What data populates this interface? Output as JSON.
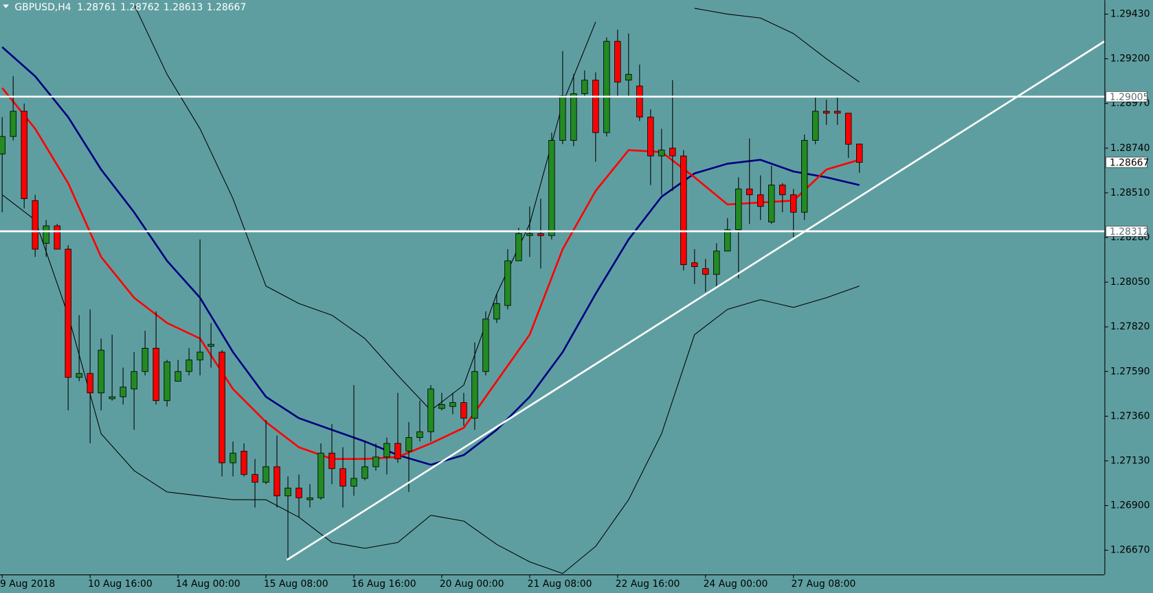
{
  "chart_data": {
    "type": "candlestick",
    "symbol": "GBPUSD,H4",
    "background": "#5f9ea0",
    "up_color": "#228b22",
    "down_color": "#ff0000",
    "candles": [
      [
        1.2871,
        1.289,
        1.2841,
        1.288
      ],
      [
        1.288,
        1.2911,
        1.2878,
        1.2893
      ],
      [
        1.2893,
        1.2897,
        1.2843,
        1.2848
      ],
      [
        1.2847,
        1.285,
        1.2818,
        1.2822
      ],
      [
        1.2825,
        1.2837,
        1.2818,
        1.2834
      ],
      [
        1.2834,
        1.2835,
        1.2822,
        1.2822
      ],
      [
        1.2822,
        1.2824,
        1.2739,
        1.2756
      ],
      [
        1.2756,
        1.2788,
        1.2754,
        1.2758
      ],
      [
        1.2758,
        1.2791,
        1.2722,
        1.2748
      ],
      [
        1.2748,
        1.2776,
        1.2739,
        1.277
      ],
      [
        1.2745,
        1.2778,
        1.2744,
        1.2746
      ],
      [
        1.2746,
        1.2761,
        1.2742,
        1.2751
      ],
      [
        1.275,
        1.2769,
        1.2729,
        1.2759
      ],
      [
        1.2759,
        1.278,
        1.2757,
        1.2771
      ],
      [
        1.2771,
        1.279,
        1.2742,
        1.2744
      ],
      [
        1.2744,
        1.2765,
        1.2741,
        1.2764
      ],
      [
        1.2754,
        1.2765,
        1.2754,
        1.2759
      ],
      [
        1.2759,
        1.2771,
        1.2757,
        1.2765
      ],
      [
        1.2765,
        1.2827,
        1.2757,
        1.2769
      ],
      [
        1.2772,
        1.2784,
        1.2761,
        1.2773
      ],
      [
        1.2769,
        1.277,
        1.2705,
        1.2712
      ],
      [
        1.2712,
        1.2723,
        1.2705,
        1.2717
      ],
      [
        1.2718,
        1.2722,
        1.2705,
        1.2706
      ],
      [
        1.2706,
        1.2714,
        1.2689,
        1.2702
      ],
      [
        1.2702,
        1.2734,
        1.2701,
        1.271
      ],
      [
        1.271,
        1.2726,
        1.2689,
        1.2695
      ],
      [
        1.2695,
        1.2705,
        1.2663,
        1.2699
      ],
      [
        1.2699,
        1.2706,
        1.2684,
        1.2694
      ],
      [
        1.2693,
        1.2701,
        1.2689,
        1.2694
      ],
      [
        1.2694,
        1.2722,
        1.2693,
        1.2717
      ],
      [
        1.2717,
        1.2732,
        1.2701,
        1.2709
      ],
      [
        1.2709,
        1.272,
        1.2689,
        1.27
      ],
      [
        1.27,
        1.2752,
        1.2695,
        1.2704
      ],
      [
        1.2704,
        1.2723,
        1.2703,
        1.271
      ],
      [
        1.271,
        1.2722,
        1.2708,
        1.2715
      ],
      [
        1.2715,
        1.2725,
        1.2706,
        1.2722
      ],
      [
        1.2722,
        1.2748,
        1.2712,
        1.2714
      ],
      [
        1.2718,
        1.2733,
        1.2697,
        1.2725
      ],
      [
        1.2725,
        1.2744,
        1.2723,
        1.2728
      ],
      [
        1.2728,
        1.2752,
        1.2723,
        1.275
      ],
      [
        1.274,
        1.2748,
        1.2739,
        1.2742
      ],
      [
        1.2741,
        1.2748,
        1.2737,
        1.2743
      ],
      [
        1.2743,
        1.2748,
        1.2731,
        1.2735
      ],
      [
        1.2735,
        1.2774,
        1.2729,
        1.2759
      ],
      [
        1.2759,
        1.279,
        1.2757,
        1.2786
      ],
      [
        1.2786,
        1.2799,
        1.2784,
        1.2794
      ],
      [
        1.2793,
        1.2822,
        1.2791,
        1.2816
      ],
      [
        1.2816,
        1.2833,
        1.2816,
        1.283
      ],
      [
        1.2829,
        1.2844,
        1.2818,
        1.283
      ],
      [
        1.283,
        1.2848,
        1.2812,
        1.2829
      ],
      [
        1.2829,
        1.2882,
        1.2827,
        1.2878
      ],
      [
        1.2878,
        1.2924,
        1.2876,
        1.2901
      ],
      [
        1.2878,
        1.2912,
        1.2875,
        1.2902
      ],
      [
        1.2902,
        1.2914,
        1.2901,
        1.2909
      ],
      [
        1.2909,
        1.2913,
        1.2867,
        1.2882
      ],
      [
        1.2882,
        1.2931,
        1.288,
        1.2929
      ],
      [
        1.2929,
        1.2935,
        1.2901,
        1.2908
      ],
      [
        1.2909,
        1.2933,
        1.2901,
        1.2912
      ],
      [
        1.2906,
        1.2917,
        1.2888,
        1.289
      ],
      [
        1.289,
        1.2894,
        1.2855,
        1.287
      ],
      [
        1.287,
        1.2884,
        1.285,
        1.2873
      ],
      [
        1.2874,
        1.2909,
        1.2852,
        1.287
      ],
      [
        1.287,
        1.2873,
        1.2811,
        1.2814
      ],
      [
        1.2815,
        1.2822,
        1.2804,
        1.2813
      ],
      [
        1.2812,
        1.2817,
        1.28,
        1.2809
      ],
      [
        1.2809,
        1.2825,
        1.2802,
        1.2821
      ],
      [
        1.2821,
        1.2838,
        1.2821,
        1.2832
      ],
      [
        1.2832,
        1.2859,
        1.2807,
        1.2853
      ],
      [
        1.2853,
        1.2879,
        1.2835,
        1.285
      ],
      [
        1.285,
        1.286,
        1.2837,
        1.2844
      ],
      [
        1.2836,
        1.2865,
        1.2835,
        1.2855
      ],
      [
        1.2855,
        1.2856,
        1.2841,
        1.285
      ],
      [
        1.285,
        1.2853,
        1.2828,
        1.2841
      ],
      [
        1.2841,
        1.2881,
        1.2837,
        1.2878
      ],
      [
        1.2878,
        1.29,
        1.2876,
        1.2893
      ],
      [
        1.2893,
        1.2899,
        1.2886,
        1.2892
      ],
      [
        1.2893,
        1.29,
        1.2886,
        1.2892
      ],
      [
        1.2892,
        1.2892,
        1.2869,
        1.2876
      ],
      [
        1.28761,
        1.28762,
        1.28613,
        1.28667
      ]
    ],
    "overlays": [
      {
        "color": "#000000",
        "width": 1,
        "x": [
          0,
          3,
          6,
          9,
          12,
          15,
          18,
          21,
          24,
          27,
          30,
          33,
          36,
          39,
          42,
          45,
          48,
          51,
          54,
          57,
          60,
          63,
          66,
          69,
          72,
          75,
          78
        ],
        "values": [
          null,
          null,
          null,
          null,
          1.2948,
          1.2912,
          1.2884,
          1.2848,
          1.2803,
          1.2794,
          1.2788,
          1.2776,
          1.2757,
          1.2739,
          1.2752,
          1.2799,
          1.2835,
          1.2897,
          1.2939,
          null,
          null,
          1.2946,
          1.2943,
          1.2941,
          1.2933,
          1.292,
          1.2908
        ]
      },
      {
        "color": "#000000",
        "width": 1,
        "x": [
          0,
          3,
          6,
          9,
          12,
          15,
          18,
          21,
          24,
          27,
          30,
          33,
          36,
          39,
          42,
          45,
          48,
          51,
          54,
          57,
          60,
          63,
          66,
          69,
          72,
          75,
          78
        ],
        "values": [
          1.285,
          1.2837,
          1.2788,
          1.2727,
          1.2708,
          1.2697,
          1.2695,
          1.2693,
          1.2693,
          1.2684,
          1.2671,
          1.2668,
          1.2671,
          1.2685,
          1.2682,
          1.267,
          1.2661,
          1.2655,
          1.2669,
          1.2693,
          1.2727,
          1.2778,
          1.2791,
          1.2796,
          1.2792,
          1.2797,
          1.2803
        ]
      },
      {
        "color": "#000080",
        "width": 2.5,
        "x": [
          0,
          3,
          6,
          9,
          12,
          15,
          18,
          21,
          24,
          27,
          30,
          33,
          36,
          39,
          42,
          45,
          48,
          51,
          54,
          57,
          60,
          63,
          66,
          69,
          72,
          75,
          78
        ],
        "values": [
          1.2926,
          1.2911,
          1.289,
          1.2863,
          1.2841,
          1.2816,
          1.2797,
          1.2769,
          1.2746,
          1.2735,
          1.2729,
          1.2723,
          1.2716,
          1.2711,
          1.2716,
          1.2729,
          1.2746,
          1.2769,
          1.2799,
          1.2827,
          1.2849,
          1.2861,
          1.2866,
          1.2868,
          1.2862,
          1.2859,
          1.2855
        ]
      },
      {
        "color": "#ff0000",
        "width": 2.5,
        "x": [
          0,
          3,
          6,
          9,
          12,
          15,
          18,
          21,
          24,
          27,
          30,
          33,
          36,
          39,
          42,
          45,
          48,
          51,
          54,
          57,
          60,
          63,
          66,
          69,
          72,
          75,
          78
        ],
        "values": [
          1.2905,
          1.2884,
          1.2856,
          1.2818,
          1.2797,
          1.2784,
          1.2776,
          1.275,
          1.2733,
          1.272,
          1.2714,
          1.2714,
          1.2715,
          1.2722,
          1.273,
          1.2754,
          1.2778,
          1.2822,
          1.2852,
          1.2873,
          1.2872,
          1.2859,
          1.2845,
          1.2846,
          1.2847,
          1.2863,
          1.2868
        ]
      }
    ],
    "hlines": [
      1.29005,
      1.28312
    ],
    "line_color": "#ffffff",
    "trendline": {
      "x": [
        25.9,
        100.3
      ],
      "values": [
        1.2662,
        1.2929
      ]
    },
    "xlim": [
      -0.2,
      100.3
    ],
    "ylim": [
      1.26545,
      1.29502
    ],
    "xticks": [
      {
        "value": 0,
        "label": "9 Aug 2018"
      },
      {
        "value": 8,
        "label": "10 Aug 16:00"
      },
      {
        "value": 16,
        "label": "14 Aug 00:00"
      },
      {
        "value": 24,
        "label": "15 Aug 08:00"
      },
      {
        "value": 32,
        "label": "16 Aug 16:00"
      },
      {
        "value": 40,
        "label": "20 Aug 00:00"
      },
      {
        "value": 48,
        "label": "21 Aug 08:00"
      },
      {
        "value": 56,
        "label": "22 Aug 16:00"
      },
      {
        "value": 64,
        "label": "24 Aug 00:00"
      },
      {
        "value": 72,
        "label": "27 Aug 08:00"
      }
    ],
    "yticks": [
      {
        "value": 1.2943,
        "label": "1.29430"
      },
      {
        "value": 1.292,
        "label": "1.29200"
      },
      {
        "value": 1.2897,
        "label": "1.28970"
      },
      {
        "value": 1.2874,
        "label": "1.28740"
      },
      {
        "value": 1.2851,
        "label": "1.28510"
      },
      {
        "value": 1.2828,
        "label": "1.28280"
      },
      {
        "value": 1.2805,
        "label": "1.28050"
      },
      {
        "value": 1.2782,
        "label": "1.27820"
      },
      {
        "value": 1.2759,
        "label": "1.27590"
      },
      {
        "value": 1.2736,
        "label": "1.27360"
      },
      {
        "value": 1.2713,
        "label": "1.27130"
      },
      {
        "value": 1.269,
        "label": "1.26900"
      },
      {
        "value": 1.2667,
        "label": "1.26670"
      }
    ]
  }
}
